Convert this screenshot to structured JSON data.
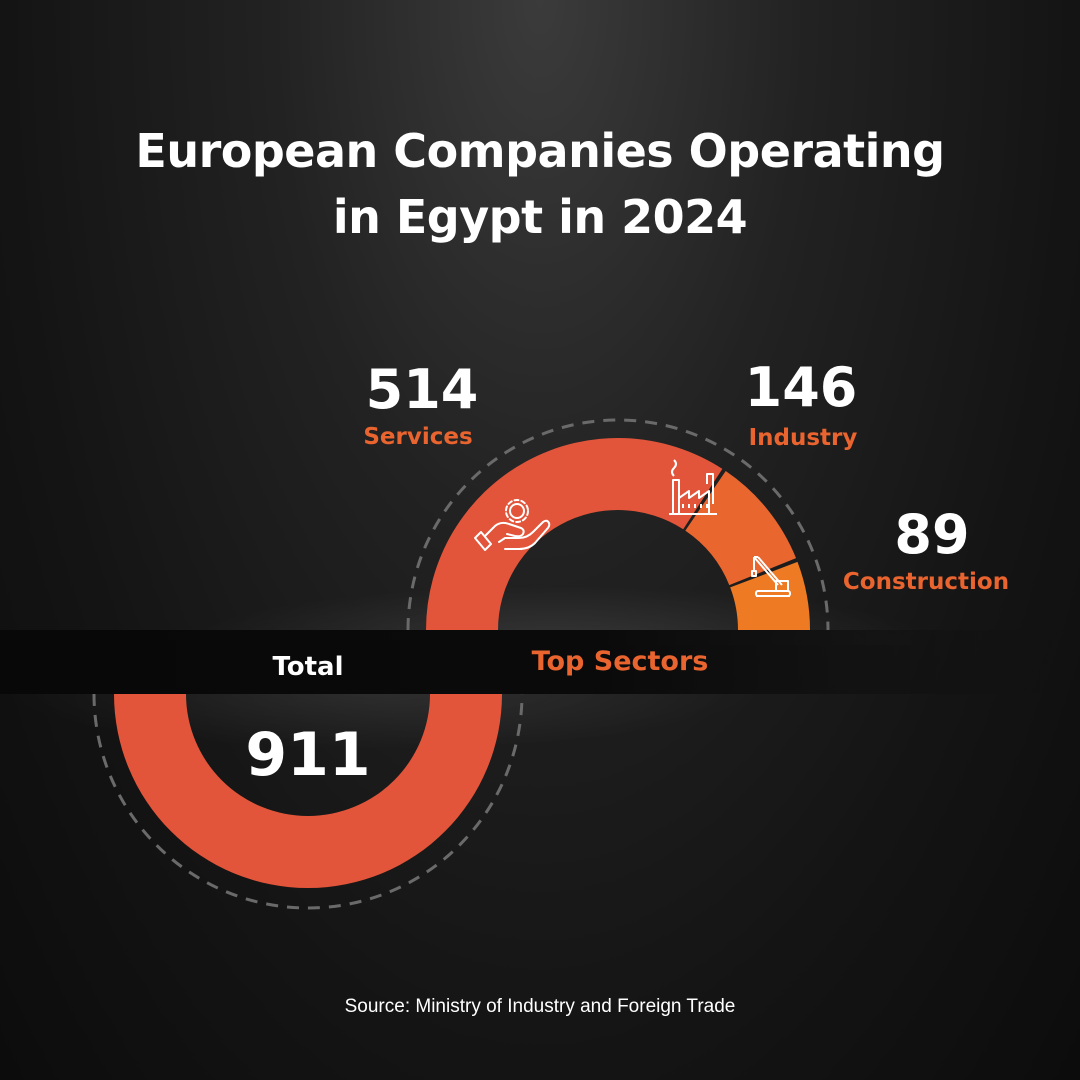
{
  "title": {
    "line1": "European Companies Operating",
    "line2": "in Egypt in 2024"
  },
  "colors": {
    "services": "#e2553a",
    "industry": "#e9672f",
    "construction": "#ef7a24",
    "total": "#e2553a",
    "label_accent": "#e9642e"
  },
  "chart_data": [
    {
      "type": "pie",
      "variant": "half-donut",
      "title": "Top Sectors",
      "categories": [
        "Services",
        "Industry",
        "Construction"
      ],
      "values": [
        514,
        146,
        89
      ],
      "icons": [
        "hand-gear-icon",
        "factory-icon",
        "crane-icon"
      ]
    },
    {
      "type": "pie",
      "variant": "half-donut",
      "title": "Total",
      "categories": [
        "Total"
      ],
      "values": [
        911
      ]
    }
  ],
  "source": "Source: Ministry of Industry and Foreign Trade"
}
